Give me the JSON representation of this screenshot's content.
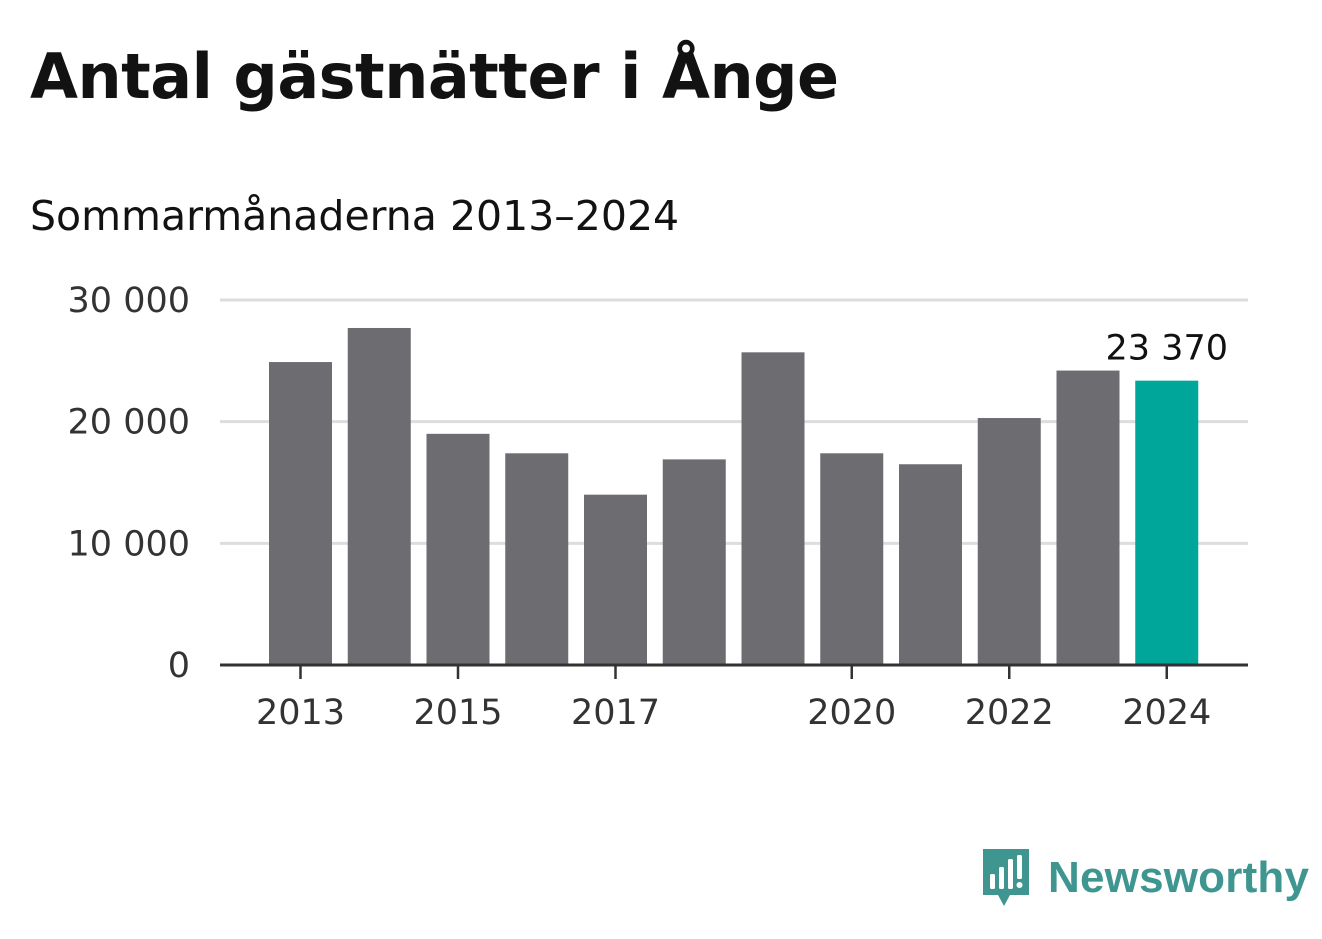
{
  "title": "Antal gästnätter i Ånge",
  "subtitle": "Sommarmånaderna 2013–2024",
  "brand": {
    "name": "Newsworthy",
    "icon": "newsworthy-logo-icon",
    "color": "#3f9690"
  },
  "colors": {
    "bar": "#6d6c71",
    "highlight": "#00a699",
    "grid": "#dddddd",
    "axis": "#333333"
  },
  "chart_data": {
    "type": "bar",
    "title": "Antal gästnätter i Ånge",
    "subtitle": "Sommarmånaderna 2013–2024",
    "xlabel": "",
    "ylabel": "",
    "categories": [
      "2013",
      "2014",
      "2015",
      "2016",
      "2017",
      "2018",
      "2019",
      "2020",
      "2021",
      "2022",
      "2023",
      "2024"
    ],
    "values": [
      24900,
      27700,
      19000,
      17400,
      14000,
      16900,
      25700,
      17400,
      16500,
      20300,
      24200,
      23370
    ],
    "highlight_index": 11,
    "data_labels": [
      {
        "index": 11,
        "text": "23 370"
      }
    ],
    "x_tick_labels": [
      "2013",
      "2015",
      "2017",
      "2020",
      "2022",
      "2024"
    ],
    "y_ticks": [
      {
        "value": 0,
        "label": "0"
      },
      {
        "value": 10000,
        "label": "10 000"
      },
      {
        "value": 20000,
        "label": "20 000"
      },
      {
        "value": 30000,
        "label": "30 000"
      }
    ],
    "ylim": [
      0,
      30000
    ],
    "grid": true,
    "legend": false
  }
}
